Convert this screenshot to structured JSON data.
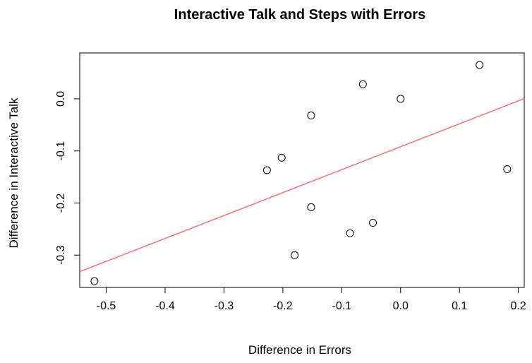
{
  "chart_data": {
    "type": "scatter",
    "title": "Interactive Talk and Steps with Errors",
    "xlabel": "Difference in Errors",
    "ylabel": "Difference in Interactive Talk",
    "xlim": [
      -0.545,
      0.21
    ],
    "ylim": [
      -0.362,
      0.088
    ],
    "x_ticks": [
      -0.5,
      -0.4,
      -0.3,
      -0.2,
      -0.1,
      0.0,
      0.1,
      0.2
    ],
    "x_tick_labels": [
      "-0.5",
      "-0.4",
      "-0.3",
      "-0.2",
      "-0.1",
      "0.0",
      "0.1",
      "0.2"
    ],
    "y_ticks": [
      -0.3,
      -0.2,
      -0.1,
      0.0
    ],
    "y_tick_labels": [
      "-0.3",
      "-0.2",
      "-0.1",
      "0.0"
    ],
    "grid": false,
    "points": [
      {
        "x": -0.52,
        "y": -0.35
      },
      {
        "x": -0.227,
        "y": -0.137
      },
      {
        "x": -0.202,
        "y": -0.113
      },
      {
        "x": -0.18,
        "y": -0.3
      },
      {
        "x": -0.152,
        "y": -0.032
      },
      {
        "x": -0.152,
        "y": -0.208
      },
      {
        "x": -0.086,
        "y": -0.258
      },
      {
        "x": -0.064,
        "y": 0.028
      },
      {
        "x": -0.047,
        "y": -0.238
      },
      {
        "x": 0.0,
        "y": 0.0
      },
      {
        "x": 0.134,
        "y": 0.065
      },
      {
        "x": 0.181,
        "y": -0.135
      }
    ],
    "fit_line": {
      "intercept": -0.092,
      "slope": 0.44
    },
    "colors": {
      "points": "#000000",
      "fit_line": "#ff6666",
      "axes": "#000000"
    }
  }
}
